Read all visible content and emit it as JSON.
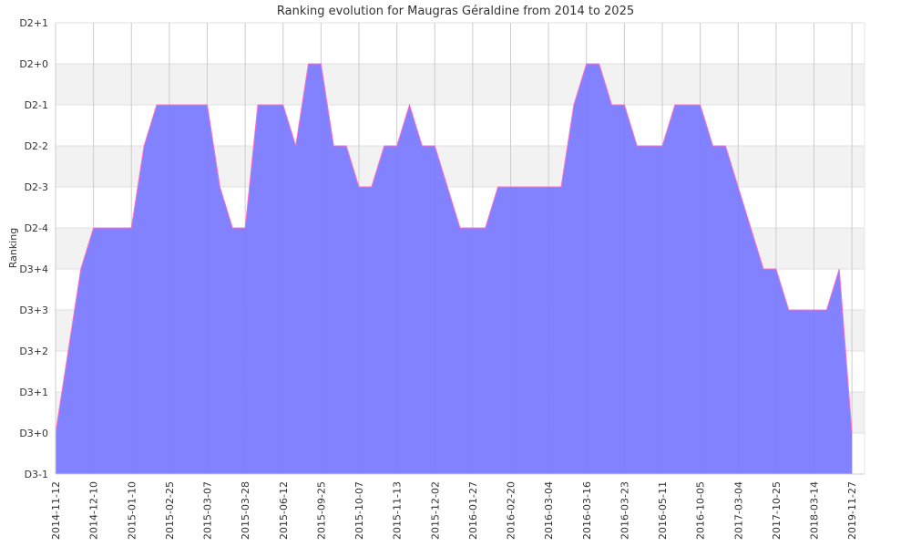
{
  "chart_data": {
    "type": "area",
    "title": "Ranking evolution for Maugras Géraldine from 2014 to 2025",
    "ylabel": "Ranking",
    "xlabel": "",
    "y_ticks": [
      "D3-1",
      "D3+0",
      "D3+1",
      "D3+2",
      "D3+3",
      "D3+4",
      "D2-4",
      "D2-3",
      "D2-2",
      "D2-1",
      "D2+0",
      "D2+1"
    ],
    "ylim": [
      0,
      11
    ],
    "x_tick_labels": [
      "2014-11-12",
      "2014-12-10",
      "2015-01-10",
      "2015-02-25",
      "2015-03-07",
      "2015-03-28",
      "2015-06-12",
      "2015-09-25",
      "2015-10-07",
      "2015-11-13",
      "2015-12-02",
      "2016-01-27",
      "2016-02-20",
      "2016-03-04",
      "2016-03-16",
      "2016-03-23",
      "2016-05-11",
      "2016-10-05",
      "2017-03-04",
      "2017-10-25",
      "2018-03-14",
      "2019-11-27"
    ],
    "x_tick_index": [
      0,
      3,
      6,
      9,
      12,
      15,
      18,
      21,
      24,
      27,
      30,
      33,
      36,
      39,
      42,
      45,
      48,
      51,
      54,
      57,
      60,
      63
    ],
    "grid": true,
    "series": [
      {
        "values": [
          1,
          3,
          5,
          6,
          6,
          6,
          6,
          8,
          9,
          9,
          9,
          9,
          9,
          7,
          6,
          6,
          9,
          9,
          9,
          8,
          10,
          10,
          8,
          8,
          7,
          7,
          8,
          8,
          9,
          8,
          8,
          7,
          6,
          6,
          6,
          7,
          7,
          7,
          7,
          7,
          7,
          9,
          10,
          10,
          9,
          9,
          8,
          8,
          8,
          9,
          9,
          9,
          8,
          8,
          7,
          6,
          5,
          5,
          4,
          4,
          4,
          4,
          5,
          1
        ]
      }
    ],
    "colors": {
      "fill": "#7b7bff",
      "stroke": "#ff6ec7",
      "band": "#f2f2f2",
      "grid": "#cccccc",
      "axis": "#cccccc"
    }
  }
}
